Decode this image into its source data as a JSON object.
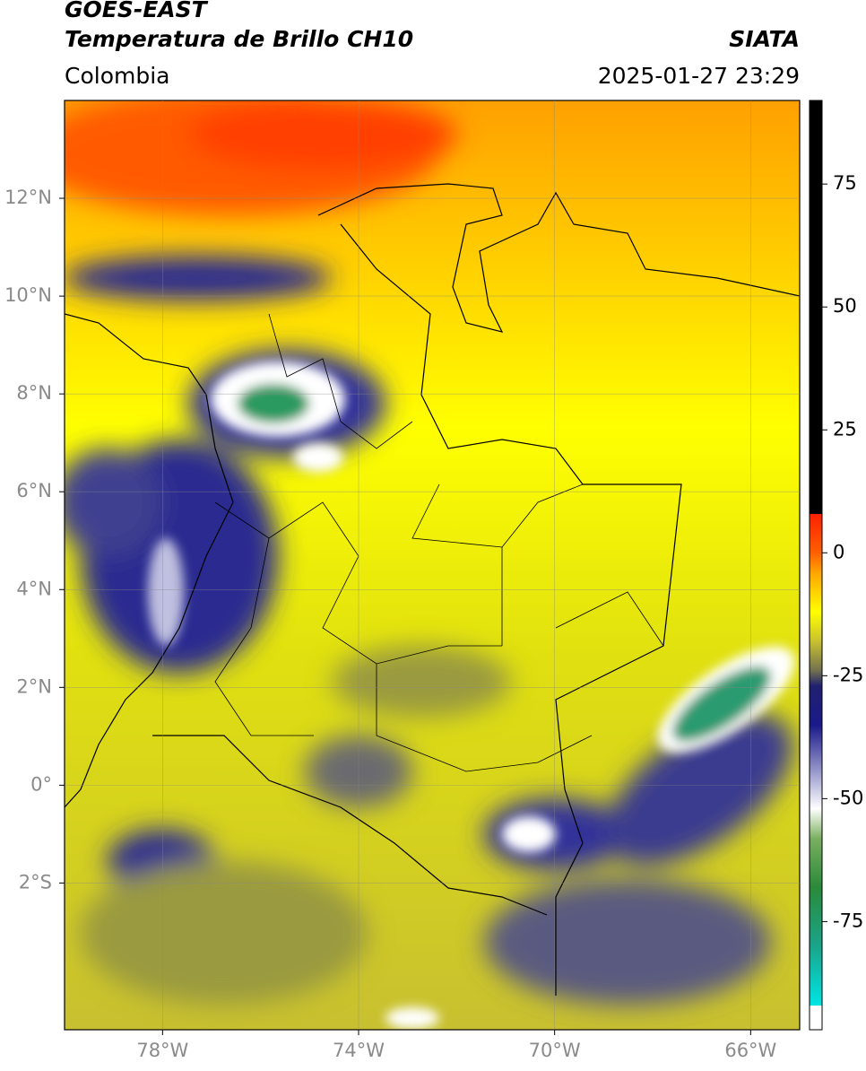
{
  "chart_data": {
    "type": "map",
    "title": "GOES-EAST",
    "subtitle": "Temperatura de Brillo CH10",
    "region": "Colombia",
    "source": "SIATA",
    "datetime": "2025-01-27 23:29",
    "xlim": [
      -80,
      -65
    ],
    "ylim": [
      -5,
      14
    ],
    "xticks": [
      {
        "value": -78,
        "label": "78°W"
      },
      {
        "value": -74,
        "label": "74°W"
      },
      {
        "value": -70,
        "label": "70°W"
      },
      {
        "value": -66,
        "label": "66°W"
      }
    ],
    "yticks": [
      {
        "value": 12,
        "label": "12°N"
      },
      {
        "value": 10,
        "label": "10°N"
      },
      {
        "value": 8,
        "label": "8°N"
      },
      {
        "value": 6,
        "label": "6°N"
      },
      {
        "value": 4,
        "label": "4°N"
      },
      {
        "value": 2,
        "label": "2°N"
      },
      {
        "value": 0,
        "label": "0°"
      },
      {
        "value": -2,
        "label": "2°S"
      }
    ],
    "grid": true,
    "colorbar": {
      "lim": [
        -97,
        92
      ],
      "ticks": [
        75,
        50,
        25,
        0,
        -25,
        -50,
        -75
      ],
      "stops": [
        {
          "value": -97,
          "color": "#ffffff"
        },
        {
          "value": -92,
          "color": "#ffffff"
        },
        {
          "value": -92,
          "color": "#00e5e5"
        },
        {
          "value": -80,
          "color": "#1aa58a"
        },
        {
          "value": -68,
          "color": "#2a8a3a"
        },
        {
          "value": -58,
          "color": "#7ab060"
        },
        {
          "value": -52,
          "color": "#ffffff"
        },
        {
          "value": -45,
          "color": "#a0a0d0"
        },
        {
          "value": -35,
          "color": "#1a1a8a"
        },
        {
          "value": -27,
          "color": "#202070"
        },
        {
          "value": -24,
          "color": "#707050"
        },
        {
          "value": -18,
          "color": "#c8c030"
        },
        {
          "value": -12,
          "color": "#ffff00"
        },
        {
          "value": -4,
          "color": "#ffa500"
        },
        {
          "value": 0,
          "color": "#ff6000"
        },
        {
          "value": 8,
          "color": "#ff2000"
        },
        {
          "value": 8,
          "color": "#000000"
        },
        {
          "value": 92,
          "color": "#000000"
        }
      ]
    }
  }
}
